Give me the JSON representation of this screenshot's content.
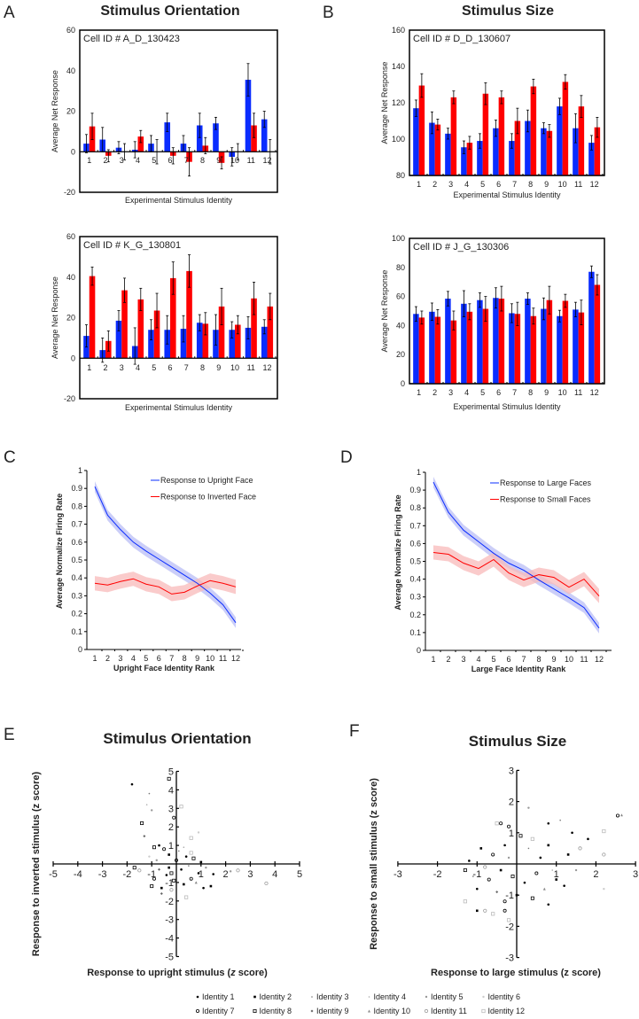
{
  "colors": {
    "upright_or_large": "#0a2cff",
    "inverted_or_small": "#ff0000",
    "band_blue": "#b9bdf5",
    "band_red": "#f8b9b9"
  },
  "chart_data": [
    {
      "panel": "A",
      "type": "bar",
      "title": "Stimulus Orientation",
      "cell_id": "Cell ID # A_D_130423",
      "xlabel": "Experimental Stimulus Identity",
      "ylabel": "Average Net Response",
      "ylim": [
        -20,
        60
      ],
      "yticks": [
        -20,
        0,
        20,
        40,
        60
      ],
      "categories": [
        "1",
        "2",
        "3",
        "4",
        "5",
        "6",
        "7",
        "8",
        "9",
        "10",
        "11",
        "12"
      ],
      "series": [
        {
          "values": [
            4,
            6,
            2,
            1,
            4,
            14.5,
            4,
            13,
            14,
            -2.5,
            35.5,
            16
          ],
          "err": [
            4.5,
            6,
            3,
            4,
            4,
            4.5,
            4,
            6,
            3,
            4.5,
            8,
            4
          ]
        },
        {
          "values": [
            12.5,
            -2,
            0,
            7.5,
            0,
            -2,
            -5,
            3,
            -5.5,
            0,
            13,
            0
          ],
          "err": [
            6.5,
            3,
            4,
            3,
            6,
            4,
            7,
            4,
            3,
            4,
            6,
            6
          ]
        }
      ]
    },
    {
      "panel": "A2",
      "type": "bar",
      "cell_id": "Cell ID # K_G_130801",
      "xlabel": "Experimental Stimulus Identity",
      "ylabel": "Average Net Response",
      "ylim": [
        -20,
        60
      ],
      "yticks": [
        -20,
        0,
        20,
        40,
        60
      ],
      "categories": [
        "1",
        "2",
        "3",
        "4",
        "5",
        "6",
        "7",
        "8",
        "9",
        "10",
        "11",
        "12"
      ],
      "series": [
        {
          "values": [
            11,
            4,
            18.5,
            6,
            14,
            14,
            14.5,
            17.5,
            14,
            14,
            15,
            15.5
          ],
          "err": [
            5.5,
            6,
            5,
            9,
            5,
            7,
            6.5,
            4,
            7.5,
            4,
            5.5,
            3.5
          ]
        },
        {
          "values": [
            40.5,
            8.5,
            33.5,
            29,
            23.5,
            39.5,
            43,
            17,
            25.5,
            16.5,
            29.5,
            25.5
          ],
          "err": [
            4.5,
            5,
            6,
            5.5,
            8.5,
            8,
            8,
            5.5,
            9,
            4.5,
            8,
            6.5
          ]
        }
      ]
    },
    {
      "panel": "B",
      "type": "bar",
      "title": "Stimulus Size",
      "cell_id": "Cell ID # D_D_130607",
      "xlabel": "Experimental Stimulus Identity",
      "ylabel": "Average Net Response",
      "ylim": [
        80,
        160
      ],
      "yticks": [
        80,
        100,
        120,
        140,
        160
      ],
      "categories": [
        "1",
        "2",
        "3",
        "4",
        "5",
        "6",
        "7",
        "8",
        "9",
        "10",
        "11",
        "12"
      ],
      "series": [
        {
          "values": [
            117,
            109,
            103,
            95.5,
            99,
            106,
            99,
            110,
            106,
            118,
            106,
            98
          ],
          "err": [
            4.5,
            6,
            3,
            3.5,
            4,
            4.5,
            4,
            6,
            3,
            4.5,
            8,
            4
          ]
        },
        {
          "values": [
            129.5,
            108,
            123,
            98,
            125,
            123,
            110,
            129,
            104.5,
            131.5,
            118,
            106.5
          ],
          "err": [
            6.5,
            3,
            3.5,
            3.5,
            6,
            3.5,
            7,
            4,
            3.5,
            4,
            6,
            5.5
          ]
        }
      ]
    },
    {
      "panel": "B2",
      "type": "bar",
      "cell_id": "Cell ID # J_G_130306",
      "xlabel": "Experimental Stimulus Identity",
      "ylabel": "Average Net Response",
      "ylim": [
        0,
        100
      ],
      "yticks": [
        0,
        20,
        40,
        60,
        80,
        100
      ],
      "categories": [
        "1",
        "2",
        "3",
        "4",
        "5",
        "6",
        "7",
        "8",
        "9",
        "10",
        "11",
        "12"
      ],
      "series": [
        {
          "values": [
            48,
            49.5,
            58.5,
            55,
            57.5,
            59,
            48.5,
            58.5,
            51.5,
            46.5,
            51,
            77
          ],
          "err": [
            5,
            6,
            5,
            9,
            5,
            7,
            6.5,
            4,
            7.5,
            4,
            5,
            4
          ]
        },
        {
          "values": [
            45.5,
            46,
            43.5,
            49.5,
            51.5,
            58.5,
            48,
            46.5,
            57.5,
            57,
            49,
            68
          ],
          "err": [
            4.5,
            5,
            6.5,
            5.5,
            8.5,
            8.5,
            8,
            5.5,
            9.5,
            4.5,
            8.5,
            7
          ]
        }
      ]
    },
    {
      "panel": "C",
      "type": "line",
      "xlabel": "Upright Face Identity Rank",
      "ylabel": "Average Normalize Firing Rate",
      "ylim": [
        0,
        1
      ],
      "yticks": [
        "0",
        "0.1",
        "0.2",
        "0.3",
        "0.4",
        "0.5",
        "0.6",
        "0.7",
        "0.8",
        "0.9",
        "1"
      ],
      "x": [
        "1",
        "2",
        "3",
        "4",
        "5",
        "6",
        "7",
        "8",
        "9",
        "10",
        "11",
        "12"
      ],
      "legend": "top-right",
      "series": [
        {
          "name": "Response to Upright Face",
          "values": [
            0.91,
            0.75,
            0.67,
            0.6,
            0.55,
            0.505,
            0.46,
            0.415,
            0.37,
            0.315,
            0.25,
            0.15
          ],
          "sem": 0.03
        },
        {
          "name": "Response to Inverted Face",
          "values": [
            0.37,
            0.36,
            0.38,
            0.395,
            0.365,
            0.35,
            0.31,
            0.32,
            0.355,
            0.385,
            0.37,
            0.35
          ],
          "sem": 0.04
        }
      ]
    },
    {
      "panel": "D",
      "type": "line",
      "xlabel": "Large Face Identity Rank",
      "ylabel": "Average Normalize Firing Rate",
      "ylim": [
        0,
        1
      ],
      "yticks": [
        "0",
        "0.1",
        "0.2",
        "0.3",
        "0.4",
        "0.5",
        "0.6",
        "0.7",
        "0.8",
        "0.9",
        "1"
      ],
      "x": [
        "1",
        "2",
        "3",
        "4",
        "5",
        "6",
        "7",
        "8",
        "9",
        "10",
        "11",
        "12"
      ],
      "legend": "top-right",
      "series": [
        {
          "name": "Response to Large Faces",
          "values": [
            0.945,
            0.775,
            0.675,
            0.61,
            0.545,
            0.49,
            0.45,
            0.395,
            0.345,
            0.295,
            0.24,
            0.125
          ],
          "sem": 0.03
        },
        {
          "name": "Response to Small Faces",
          "values": [
            0.55,
            0.54,
            0.49,
            0.46,
            0.51,
            0.435,
            0.395,
            0.425,
            0.41,
            0.355,
            0.4,
            0.305
          ],
          "sem": 0.04
        }
      ]
    },
    {
      "panel": "E",
      "type": "scatter",
      "title": "Stimulus Orientation",
      "xlabel_pre": "Response to upright stimulus (",
      "xlabel_z": "z",
      "xlabel_post": " score)",
      "ylabel": "Response to inverted stimulus (z score)",
      "xlim": [
        -5,
        5
      ],
      "ylim": [
        -5,
        5
      ],
      "xticks": [
        "-5",
        "-4",
        "-3",
        "-2",
        "-1",
        "1",
        "2",
        "3",
        "4",
        "5"
      ],
      "yticks": [
        "-5",
        "-4",
        "-3",
        "-2",
        "-1",
        "1",
        "2",
        "3",
        "4",
        "5"
      ],
      "points": [
        [
          -1.8,
          4.3,
          1
        ],
        [
          -0.3,
          4.6,
          8
        ],
        [
          -1.1,
          3.8,
          3
        ],
        [
          -1.2,
          3.2,
          4
        ],
        [
          -1.0,
          2.9,
          5
        ],
        [
          0.2,
          3.1,
          12
        ],
        [
          -0.1,
          2.5,
          7
        ],
        [
          -1.4,
          2.2,
          8
        ],
        [
          -1.3,
          1.5,
          9
        ],
        [
          0.9,
          1.7,
          6
        ],
        [
          0.6,
          1.4,
          12
        ],
        [
          3.65,
          -1.05,
          11
        ],
        [
          2.5,
          -0.35,
          11
        ],
        [
          2.2,
          -0.4,
          5
        ],
        [
          1.5,
          -0.55,
          1
        ],
        [
          1.4,
          -1.2,
          2
        ],
        [
          -1.7,
          -0.2,
          8
        ],
        [
          -1.5,
          -0.35,
          11
        ],
        [
          0.4,
          -1.8,
          12
        ],
        [
          -0.6,
          -1.6,
          9
        ],
        [
          -0.9,
          0.9,
          8
        ],
        [
          -0.7,
          1.0,
          1
        ],
        [
          -0.5,
          0.8,
          7
        ],
        [
          -0.3,
          0.5,
          2
        ],
        [
          0.1,
          0.7,
          3
        ],
        [
          0.4,
          0.4,
          1
        ],
        [
          0.7,
          0.3,
          8
        ],
        [
          1.0,
          0.1,
          2
        ],
        [
          1.2,
          -0.2,
          5
        ],
        [
          0.9,
          -0.5,
          1
        ],
        [
          0.6,
          -0.8,
          7
        ],
        [
          0.3,
          -1.1,
          2
        ],
        [
          -0.1,
          -0.9,
          8
        ],
        [
          -0.4,
          -0.6,
          1
        ],
        [
          -0.7,
          -0.3,
          9
        ],
        [
          -0.9,
          -0.8,
          7
        ],
        [
          -1.0,
          -1.2,
          8
        ],
        [
          -0.6,
          -1.3,
          2
        ],
        [
          -0.2,
          -1.4,
          11
        ],
        [
          0.2,
          -0.3,
          1
        ],
        [
          -0.3,
          -0.2,
          2
        ],
        [
          0.0,
          0.2,
          7
        ],
        [
          0.5,
          -0.1,
          3
        ],
        [
          -0.8,
          0.2,
          5
        ],
        [
          0.8,
          -1.0,
          10
        ],
        [
          1.1,
          -1.3,
          1
        ],
        [
          -1.1,
          0.4,
          6
        ],
        [
          0.3,
          0.9,
          4
        ],
        [
          -0.2,
          -0.5,
          8
        ],
        [
          0.6,
          0.6,
          12
        ]
      ]
    },
    {
      "panel": "F",
      "type": "scatter",
      "title": "Stimulus Size",
      "xlabel": "Response to large stimulus (z score)",
      "ylabel": "Response to small stimulus (z score)",
      "xlim": [
        -3,
        3
      ],
      "ylim": [
        -3,
        3
      ],
      "xticks": [
        "-3",
        "-2",
        "-1",
        "1",
        "2",
        "3"
      ],
      "yticks": [
        "-3",
        "-2",
        "-1",
        "1",
        "2",
        "3"
      ],
      "points": [
        [
          2.55,
          1.55,
          7
        ],
        [
          2.65,
          1.57,
          10
        ],
        [
          2.2,
          1.05,
          12
        ],
        [
          2.2,
          0.3,
          11
        ],
        [
          2.2,
          -0.8,
          6
        ],
        [
          0.3,
          1.8,
          5
        ],
        [
          -0.4,
          1.3,
          7
        ],
        [
          -0.5,
          1.3,
          12
        ],
        [
          -0.2,
          1.2,
          7
        ],
        [
          0.8,
          1.3,
          1
        ],
        [
          1.1,
          1.4,
          3
        ],
        [
          1.4,
          1.0,
          1
        ],
        [
          1.8,
          0.8,
          1
        ],
        [
          1.6,
          0.5,
          11
        ],
        [
          1.5,
          -0.2,
          5
        ],
        [
          1.0,
          -0.5,
          2
        ],
        [
          1.2,
          -0.7,
          1
        ],
        [
          0.8,
          -1.3,
          1
        ],
        [
          -1.3,
          -1.2,
          12
        ],
        [
          -1.0,
          -1.5,
          2
        ],
        [
          -0.8,
          -1.5,
          11
        ],
        [
          -0.6,
          -1.6,
          12
        ],
        [
          -0.2,
          -1.8,
          12
        ],
        [
          -0.3,
          -1.5,
          7
        ],
        [
          -1.3,
          -0.2,
          8
        ],
        [
          -1.2,
          0.1,
          1
        ],
        [
          -0.9,
          0.5,
          2
        ],
        [
          -0.6,
          0.3,
          7
        ],
        [
          -0.3,
          0.6,
          1
        ],
        [
          0.1,
          0.9,
          8
        ],
        [
          0.3,
          0.5,
          3
        ],
        [
          0.6,
          0.2,
          1
        ],
        [
          0.8,
          0.6,
          2
        ],
        [
          0.5,
          -0.3,
          7
        ],
        [
          0.2,
          -0.6,
          1
        ],
        [
          -0.1,
          -0.4,
          8
        ],
        [
          -0.4,
          -0.2,
          2
        ],
        [
          -0.7,
          -0.5,
          7
        ],
        [
          -1.0,
          -0.8,
          1
        ],
        [
          -0.5,
          -0.9,
          9
        ],
        [
          0.0,
          -1.0,
          2
        ],
        [
          0.4,
          -1.1,
          8
        ],
        [
          -0.8,
          -0.1,
          11
        ],
        [
          0.9,
          -0.2,
          4
        ],
        [
          -0.2,
          0.2,
          5
        ],
        [
          0.4,
          0.8,
          12
        ],
        [
          -1.1,
          -0.4,
          3
        ],
        [
          1.3,
          0.3,
          2
        ],
        [
          0.7,
          -0.8,
          10
        ],
        [
          -0.3,
          -1.2,
          7
        ]
      ]
    }
  ],
  "panels": {
    "A": "A",
    "B": "B",
    "C": "C",
    "D": "D",
    "E": "E",
    "F": "F"
  },
  "legend": {
    "identities": [
      "Identity 1",
      "Identity 2",
      "Identity 3",
      "Identity 4",
      "Identity 5",
      "Identity 6",
      "Identity 7",
      "Identity 8",
      "Identity 9",
      "Identity 10",
      "Identity 11",
      "Identity 12"
    ]
  }
}
